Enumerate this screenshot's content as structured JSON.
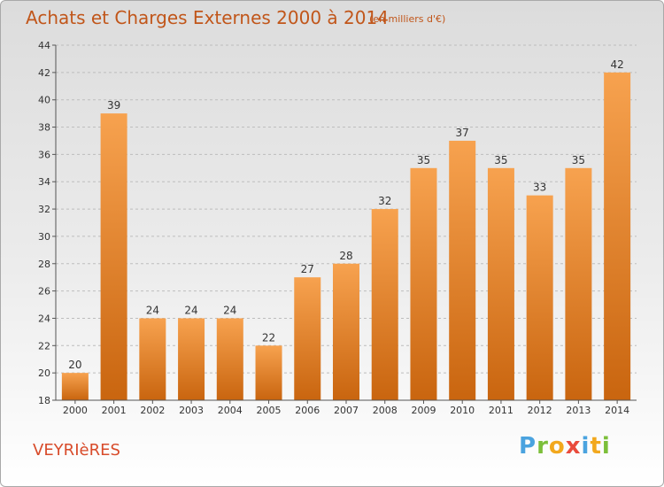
{
  "header": {
    "title": "Achats et Charges Externes 2000 à 2014",
    "subtitle": "(en milliers d'€)"
  },
  "footer": {
    "place": "VEYRIèRES",
    "brand_letters": [
      "P",
      "r",
      "o",
      "x",
      "i",
      "t",
      "i"
    ]
  },
  "colors": {
    "bar_top": "#f7a24f",
    "bar_bottom": "#c9650f",
    "title": "#c1561a",
    "place": "#d84b2a"
  },
  "chart_data": {
    "type": "bar",
    "title": "Achats et Charges Externes 2000 à 2014",
    "subtitle": "(en milliers d'€)",
    "categories": [
      "2000",
      "2001",
      "2002",
      "2003",
      "2004",
      "2005",
      "2006",
      "2007",
      "2008",
      "2009",
      "2010",
      "2011",
      "2012",
      "2013",
      "2014"
    ],
    "values": [
      20,
      39,
      24,
      24,
      24,
      22,
      27,
      28,
      32,
      35,
      37,
      35,
      33,
      35,
      42
    ],
    "ylim": [
      18,
      44
    ],
    "yticks": [
      18,
      20,
      22,
      24,
      26,
      28,
      30,
      32,
      34,
      36,
      38,
      40,
      42,
      44
    ],
    "grid": true,
    "xlabel": "",
    "ylabel": ""
  }
}
